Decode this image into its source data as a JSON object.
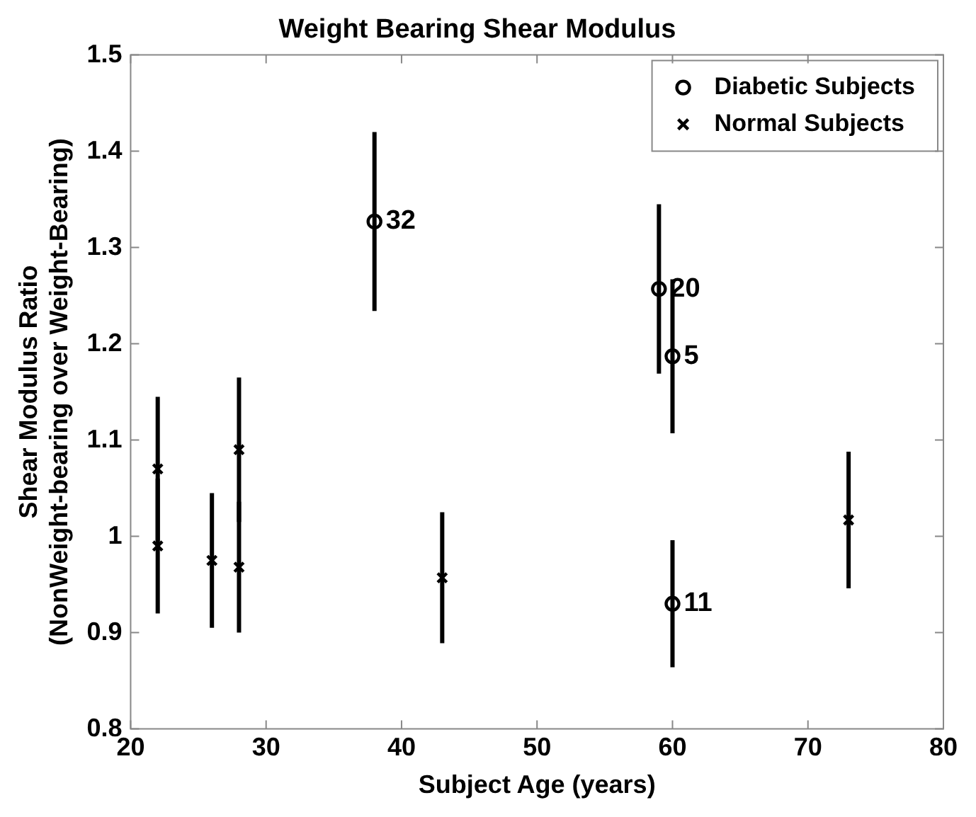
{
  "chart_data": {
    "type": "scatter",
    "title": "Weight Bearing Shear Modulus",
    "xlabel": "Subject Age (years)",
    "ylabel": "Shear Modulus Ratio\n(NonWeight-bearing over Weight-Bearing)",
    "series": [
      {
        "name": "Diabetic Subjects",
        "color": "#000000",
        "marker": "circle",
        "x": [
          38,
          59,
          60,
          60
        ],
        "values": [
          1.327,
          1.257,
          1.187,
          0.93
        ],
        "errors": [
          0.093,
          0.088,
          0.08,
          0.066
        ]
      },
      {
        "name": "Normal Subjects",
        "color": "#000000",
        "marker": "cross",
        "x": [
          22,
          22,
          26,
          28,
          28,
          43,
          73
        ],
        "values": [
          1.07,
          0.99,
          0.975,
          1.09,
          0.968,
          0.957,
          1.017
        ],
        "errors": [
          0.075,
          0.07,
          0.07,
          0.075,
          0.068,
          0.068,
          0.071
        ]
      }
    ],
    "annotations": [
      {
        "text": "32",
        "x": 38,
        "y": 1.327
      },
      {
        "text": "20",
        "x": 59,
        "y": 1.257
      },
      {
        "text": "5",
        "x": 60,
        "y": 1.187
      },
      {
        "text": "11",
        "x": 60,
        "y": 0.93
      }
    ],
    "xlim": [
      20,
      80
    ],
    "xticks": [
      20,
      30,
      40,
      50,
      60,
      70,
      80
    ],
    "ylim": [
      0.8,
      1.5
    ],
    "yticks": [
      0.8,
      0.9,
      1,
      1.1,
      1.2,
      1.3,
      1.4,
      1.5
    ],
    "grid": false,
    "legend": "top right"
  }
}
